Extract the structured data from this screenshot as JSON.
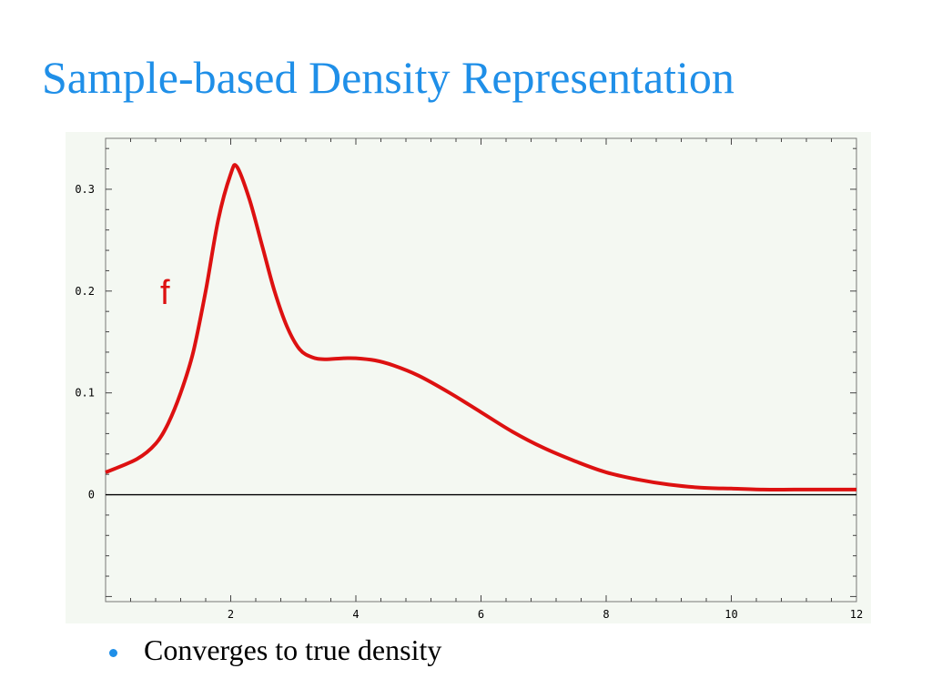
{
  "slide": {
    "title": "Sample-based Density Representation",
    "bullets": [
      "Converges to true density"
    ],
    "colors": {
      "title": "#1f8fe8",
      "bullet": "#1f8fe8",
      "curve": "#dd1111",
      "plot_bg": "#f4f8f2"
    }
  },
  "chart_data": {
    "type": "line",
    "title": "",
    "xlabel": "",
    "ylabel": "",
    "xlim": [
      0,
      12
    ],
    "ylim": [
      -0.105,
      0.35
    ],
    "x_ticks": [
      2,
      4,
      6,
      8,
      10,
      12
    ],
    "x_tick_labels": [
      "2",
      "4",
      "6",
      "8",
      "10",
      "12"
    ],
    "y_ticks": [
      0,
      0.1,
      0.2,
      0.3
    ],
    "y_tick_labels": [
      "0",
      "0.1",
      "0.2",
      "0.3"
    ],
    "grid": false,
    "zero_line": true,
    "annotations": [
      {
        "text": "f",
        "x": 0.95,
        "y": 0.2
      }
    ],
    "series": [
      {
        "name": "",
        "color": "#dd1111",
        "x": [
          0,
          0.5,
          0.8,
          1.0,
          1.2,
          1.4,
          1.6,
          1.8,
          2.0,
          2.1,
          2.3,
          2.5,
          2.7,
          2.9,
          3.1,
          3.3,
          3.5,
          3.8,
          4.0,
          4.3,
          4.6,
          5.0,
          5.5,
          6.0,
          6.5,
          7.0,
          7.5,
          8.0,
          8.5,
          9.0,
          9.5,
          10.0,
          10.5,
          11.0,
          11.5,
          12.0
        ],
        "y": [
          0.022,
          0.035,
          0.05,
          0.07,
          0.1,
          0.14,
          0.2,
          0.27,
          0.315,
          0.322,
          0.29,
          0.245,
          0.2,
          0.165,
          0.143,
          0.135,
          0.133,
          0.134,
          0.134,
          0.132,
          0.127,
          0.117,
          0.1,
          0.081,
          0.062,
          0.046,
          0.033,
          0.022,
          0.015,
          0.01,
          0.007,
          0.006,
          0.005,
          0.005,
          0.005,
          0.005
        ]
      }
    ]
  }
}
